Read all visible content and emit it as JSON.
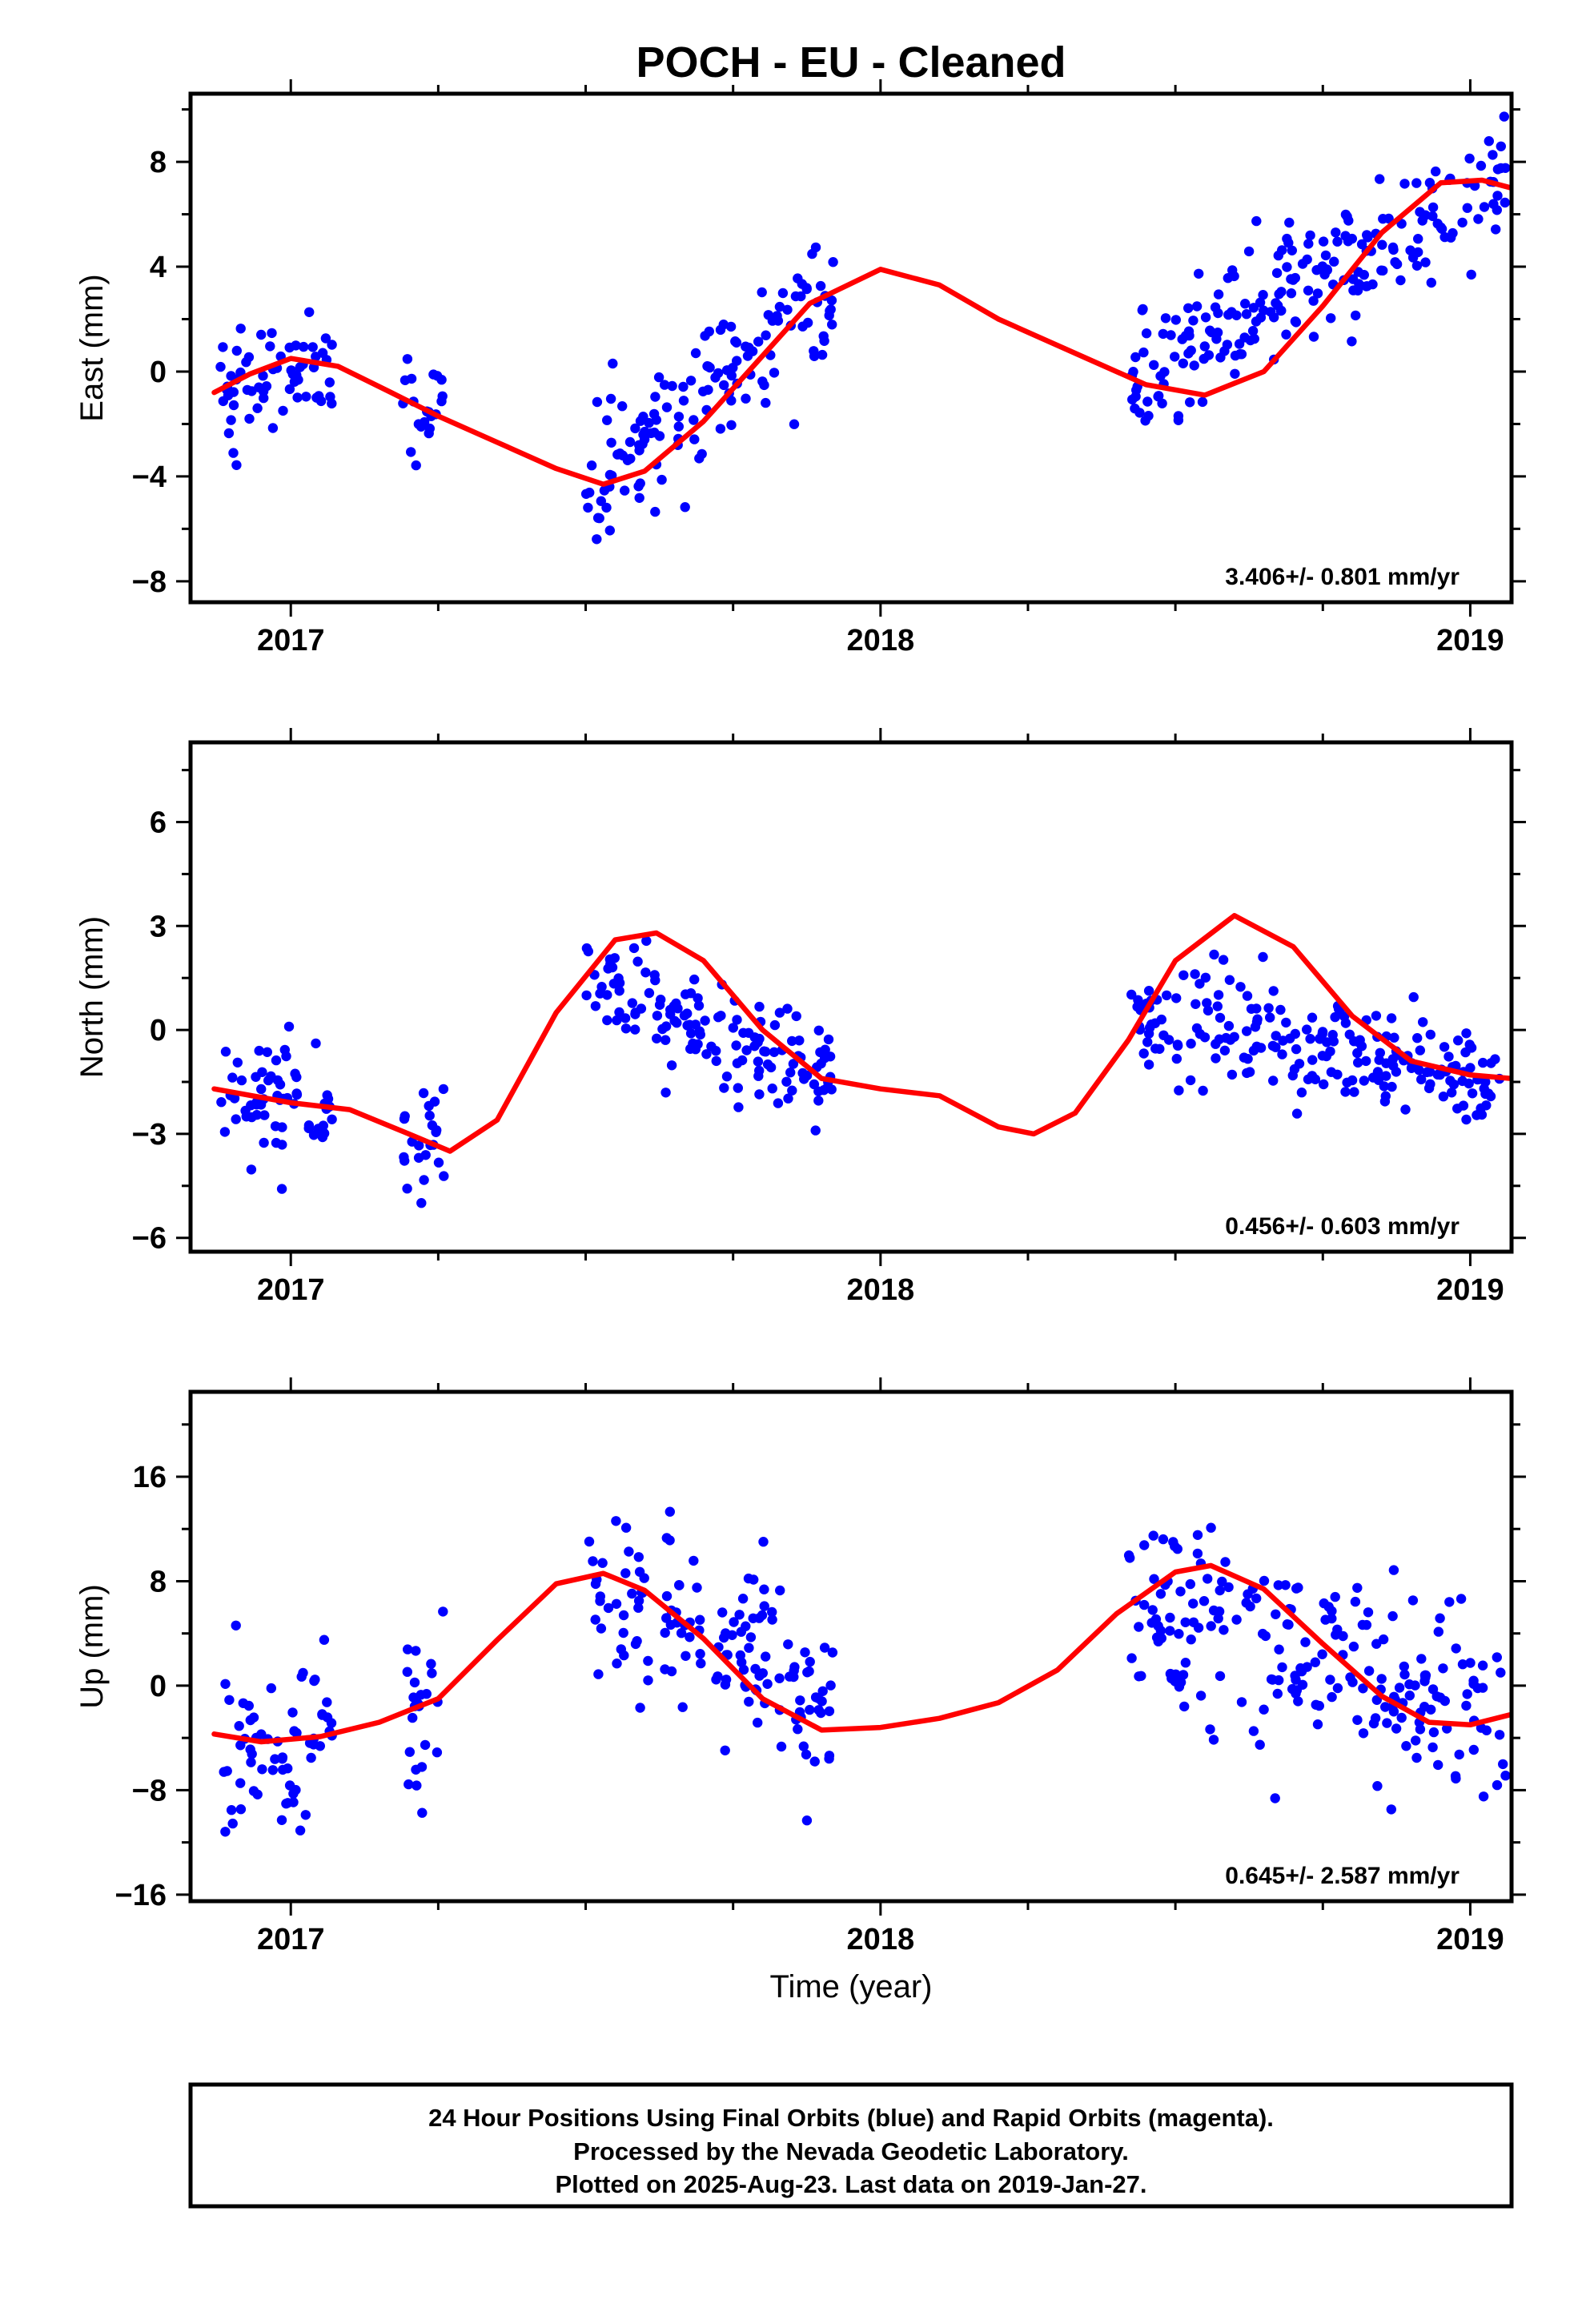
{
  "title": "POCH  - EU - Cleaned",
  "footer": {
    "line1": "24 Hour Positions Using Final Orbits (blue) and Rapid Orbits (magenta).",
    "line2": "Processed by the Nevada Geodetic Laboratory.",
    "line3": "Plotted on 2025-Aug-23. Last data on 2019-Jan-27."
  },
  "colors": {
    "observations": "#0000ff",
    "model": "#ff0000",
    "frame": "#000000"
  },
  "chart_data": [
    {
      "type": "scatter",
      "ylabel": "East (mm)",
      "xlabel": "",
      "rate_text": "3.406+/- 0.801 mm/yr",
      "xlim": [
        2016.83,
        2019.07
      ],
      "ylim": [
        -8.8,
        10.6
      ],
      "xticks": [
        2017,
        2018,
        2019
      ],
      "yticks": [
        -8,
        -4,
        0,
        4,
        8
      ],
      "tick_labels": [
        "−8",
        "−4",
        "0",
        "4",
        "8"
      ],
      "segments": [
        {
          "x0": 2016.88,
          "x1": 2017.07,
          "y0": -0.9,
          "y1": 0.6
        },
        {
          "x0": 2017.19,
          "x1": 2017.26,
          "y0": -1.4,
          "y1": -1.9
        },
        {
          "x0": 2017.5,
          "x1": 2017.92,
          "y0": -4.3,
          "y1": 3.2
        },
        {
          "x0": 2018.42,
          "x1": 2019.06,
          "y0": -0.4,
          "y1": 7.6
        }
      ],
      "noise": 1.15,
      "model": [
        [
          2016.87,
          -0.8
        ],
        [
          2016.93,
          -0.1
        ],
        [
          2017.0,
          0.5
        ],
        [
          2017.08,
          0.2
        ],
        [
          2017.17,
          -0.8
        ],
        [
          2017.25,
          -1.7
        ],
        [
          2017.35,
          -2.7
        ],
        [
          2017.45,
          -3.7
        ],
        [
          2017.53,
          -4.3
        ],
        [
          2017.6,
          -3.8
        ],
        [
          2017.7,
          -1.9
        ],
        [
          2017.8,
          0.6
        ],
        [
          2017.88,
          2.6
        ],
        [
          2018.0,
          3.9
        ],
        [
          2018.1,
          3.3
        ],
        [
          2018.2,
          2.0
        ],
        [
          2018.35,
          0.5
        ],
        [
          2018.45,
          -0.5
        ],
        [
          2018.55,
          -0.9
        ],
        [
          2018.65,
          0.0
        ],
        [
          2018.75,
          2.5
        ],
        [
          2018.85,
          5.3
        ],
        [
          2018.95,
          7.2
        ],
        [
          2019.02,
          7.3
        ],
        [
          2019.07,
          7.0
        ]
      ]
    },
    {
      "type": "scatter",
      "ylabel": "North (mm)",
      "xlabel": "",
      "rate_text": "0.456+/- 0.603 mm/yr",
      "xlim": [
        2016.83,
        2019.07
      ],
      "ylim": [
        -6.4,
        8.3
      ],
      "xticks": [
        2017,
        2018,
        2019
      ],
      "yticks": [
        -6,
        -3,
        0,
        3,
        6
      ],
      "tick_labels": [
        "−6",
        "−3",
        "0",
        "3",
        "6"
      ],
      "segments": [
        {
          "x0": 2016.88,
          "x1": 2017.07,
          "y0": -1.7,
          "y1": -2.3
        },
        {
          "x0": 2017.19,
          "x1": 2017.26,
          "y0": -2.9,
          "y1": -3.5
        },
        {
          "x0": 2017.5,
          "x1": 2017.92,
          "y0": 1.5,
          "y1": -1.5
        },
        {
          "x0": 2018.42,
          "x1": 2019.06,
          "y0": 0.5,
          "y1": -1.4
        }
      ],
      "noise": 0.85,
      "model": [
        [
          2016.87,
          -1.7
        ],
        [
          2017.0,
          -2.1
        ],
        [
          2017.1,
          -2.3
        ],
        [
          2017.2,
          -3.0
        ],
        [
          2017.27,
          -3.5
        ],
        [
          2017.35,
          -2.6
        ],
        [
          2017.45,
          0.5
        ],
        [
          2017.55,
          2.6
        ],
        [
          2017.62,
          2.8
        ],
        [
          2017.7,
          2.0
        ],
        [
          2017.8,
          0.0
        ],
        [
          2017.9,
          -1.4
        ],
        [
          2018.0,
          -1.7
        ],
        [
          2018.1,
          -1.9
        ],
        [
          2018.2,
          -2.8
        ],
        [
          2018.26,
          -3.0
        ],
        [
          2018.33,
          -2.4
        ],
        [
          2018.42,
          -0.3
        ],
        [
          2018.5,
          2.0
        ],
        [
          2018.6,
          3.3
        ],
        [
          2018.7,
          2.4
        ],
        [
          2018.8,
          0.4
        ],
        [
          2018.9,
          -0.9
        ],
        [
          2019.0,
          -1.3
        ],
        [
          2019.07,
          -1.4
        ]
      ]
    },
    {
      "type": "scatter",
      "ylabel": "Up (mm)",
      "xlabel": "Time (year)",
      "rate_text": "0.645+/- 2.587 mm/yr",
      "xlim": [
        2016.83,
        2019.07
      ],
      "ylim": [
        -16.5,
        22.5
      ],
      "xticks": [
        2017,
        2018,
        2019
      ],
      "yticks": [
        -16,
        -8,
        0,
        8,
        16
      ],
      "tick_labels": [
        "−16",
        "−8",
        "0",
        "8",
        "16"
      ],
      "segments": [
        {
          "x0": 2016.88,
          "x1": 2017.07,
          "y0": -4.0,
          "y1": -4.5
        },
        {
          "x0": 2017.19,
          "x1": 2017.26,
          "y0": -2.5,
          "y1": -1.0
        },
        {
          "x0": 2017.5,
          "x1": 2017.92,
          "y0": 8.0,
          "y1": -1.0
        },
        {
          "x0": 2018.42,
          "x1": 2019.06,
          "y0": 7.0,
          "y1": -2.5
        }
      ],
      "noise": 3.6,
      "model": [
        [
          2016.87,
          -3.7
        ],
        [
          2016.95,
          -4.3
        ],
        [
          2017.05,
          -3.9
        ],
        [
          2017.15,
          -2.8
        ],
        [
          2017.25,
          -1.0
        ],
        [
          2017.35,
          3.5
        ],
        [
          2017.45,
          7.8
        ],
        [
          2017.53,
          8.6
        ],
        [
          2017.6,
          7.3
        ],
        [
          2017.7,
          3.6
        ],
        [
          2017.8,
          -1.0
        ],
        [
          2017.9,
          -3.4
        ],
        [
          2018.0,
          -3.2
        ],
        [
          2018.1,
          -2.5
        ],
        [
          2018.2,
          -1.3
        ],
        [
          2018.3,
          1.2
        ],
        [
          2018.4,
          5.5
        ],
        [
          2018.5,
          8.7
        ],
        [
          2018.56,
          9.2
        ],
        [
          2018.65,
          7.4
        ],
        [
          2018.75,
          3.2
        ],
        [
          2018.85,
          -0.8
        ],
        [
          2018.93,
          -2.8
        ],
        [
          2019.0,
          -3.0
        ],
        [
          2019.07,
          -2.2
        ]
      ]
    }
  ]
}
